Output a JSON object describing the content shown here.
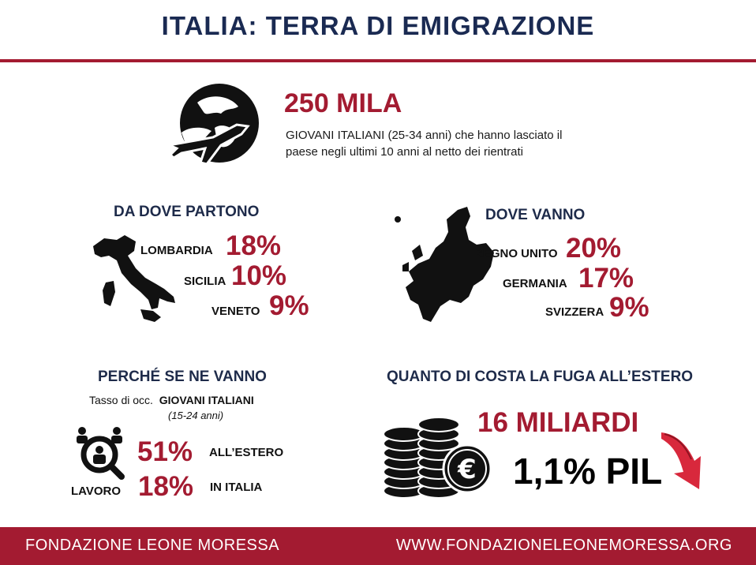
{
  "title": "ITALIA: TERRA DI EMIGRAZIONE",
  "headline": {
    "value": "250 MILA",
    "desc_line1": "GIOVANI  ITALIANI (25-34 anni) che hanno lasciato il",
    "desc_line2": "paese negli ultimi 10 anni al netto dei rientrati"
  },
  "departures": {
    "heading": "DA DOVE PARTONO",
    "items": [
      {
        "label": "LOMBARDIA",
        "value": "18%"
      },
      {
        "label": "SICILIA",
        "value": "10%"
      },
      {
        "label": "VENETO",
        "value": "9%"
      }
    ]
  },
  "destinations": {
    "heading": "DOVE VANNO",
    "items": [
      {
        "label": "REGNO UNITO",
        "value": "20%"
      },
      {
        "label": "GERMANIA",
        "value": "17%"
      },
      {
        "label": "SVIZZERA",
        "value": "9%"
      }
    ]
  },
  "why": {
    "heading": "PERCHÉ SE NE VANNO",
    "subtitle_prefix": "Tasso di occ.",
    "subtitle_bold": "GIOVANI ITALIANI",
    "subtitle_age": "(15-24 anni)",
    "icon_label": "LAVORO",
    "items": [
      {
        "value": "51%",
        "label": "ALL’ESTERO"
      },
      {
        "value": "18%",
        "label": "IN ITALIA"
      }
    ]
  },
  "cost": {
    "heading": "QUANTO DI COSTA LA FUGA ALL’ESTERO",
    "value": "16 MILIARDI",
    "pil": "1,1% PIL"
  },
  "footer": {
    "left": "FONDAZIONE LEONE MORESSA",
    "right": "WWW.FONDAZIONELEONEMORESSA.ORG"
  },
  "colors": {
    "accent": "#a31b31",
    "navy": "#1e2b4a"
  },
  "icons": [
    "globe-plane-icon",
    "italy-map-icon",
    "europe-map-icon",
    "job-search-icon",
    "coins-euro-icon",
    "down-arrow-icon"
  ]
}
